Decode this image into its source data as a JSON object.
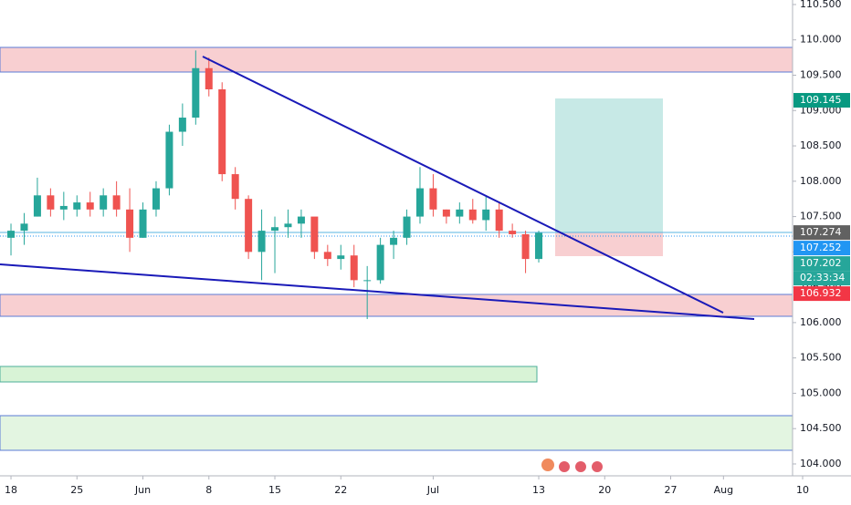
{
  "chart_data": {
    "type": "candlestick",
    "categories": [
      "18",
      null,
      null,
      null,
      null,
      "25",
      null,
      null,
      null,
      null,
      "Jun",
      null,
      null,
      null,
      null,
      "8",
      null,
      null,
      null,
      null,
      "15",
      null,
      null,
      null,
      null,
      "22",
      null,
      null,
      null,
      null,
      null,
      null,
      "Jul",
      null,
      null,
      null,
      null,
      null,
      null,
      null,
      "13",
      null,
      null,
      null,
      null,
      "20",
      null,
      null,
      null,
      null,
      "27",
      null,
      null,
      null,
      "Aug",
      null,
      null,
      null,
      null,
      null,
      "10"
    ],
    "open": [
      107.2,
      107.3,
      107.5,
      107.8,
      107.6,
      107.6,
      107.7,
      107.6,
      107.8,
      107.6,
      107.2,
      107.6,
      107.9,
      108.7,
      108.9,
      109.6,
      109.3,
      108.1,
      107.75,
      107.0,
      107.3,
      107.35,
      107.4,
      107.5,
      107.0,
      106.9,
      106.95,
      106.6,
      106.6,
      107.1,
      107.2,
      107.5,
      107.9,
      107.6,
      107.5,
      107.6,
      107.45,
      107.6,
      107.3,
      107.25,
      106.9,
      null,
      null,
      null,
      null,
      null,
      null,
      null,
      null,
      null,
      null,
      null,
      null,
      null,
      null,
      null,
      null,
      null,
      null,
      null,
      null
    ],
    "high": [
      107.4,
      107.55,
      108.05,
      107.9,
      107.85,
      107.8,
      107.85,
      107.9,
      108.0,
      107.9,
      107.7,
      108.0,
      108.8,
      109.1,
      109.85,
      109.75,
      109.4,
      108.2,
      107.8,
      107.6,
      107.5,
      107.6,
      107.6,
      107.45,
      107.1,
      107.1,
      107.1,
      106.8,
      107.2,
      107.3,
      107.6,
      108.2,
      108.1,
      107.6,
      107.7,
      107.75,
      107.8,
      107.7,
      107.4,
      107.3,
      107.3,
      null,
      null,
      null,
      null,
      null,
      null,
      null,
      null,
      null,
      null,
      null,
      null,
      null,
      null,
      null,
      null,
      null,
      null,
      null,
      null
    ],
    "low": [
      106.95,
      107.1,
      107.5,
      107.5,
      107.45,
      107.5,
      107.5,
      107.5,
      107.5,
      107.0,
      107.2,
      107.5,
      107.8,
      108.5,
      108.8,
      109.2,
      108.0,
      107.6,
      106.9,
      106.6,
      106.7,
      107.2,
      107.2,
      106.9,
      106.8,
      106.75,
      106.5,
      106.05,
      106.55,
      106.9,
      107.1,
      107.4,
      107.5,
      107.4,
      107.4,
      107.4,
      107.3,
      107.2,
      107.2,
      106.7,
      106.85,
      null,
      null,
      null,
      null,
      null,
      null,
      null,
      null,
      null,
      null,
      null,
      null,
      null,
      null,
      null,
      null,
      null,
      null,
      null,
      null
    ],
    "close": [
      107.3,
      107.4,
      107.8,
      107.6,
      107.65,
      107.7,
      107.6,
      107.8,
      107.6,
      107.2,
      107.6,
      107.9,
      108.7,
      108.9,
      109.6,
      109.3,
      108.1,
      107.75,
      107.0,
      107.3,
      107.35,
      107.4,
      107.5,
      107.0,
      106.9,
      106.95,
      106.6,
      106.6,
      107.1,
      107.2,
      107.5,
      107.9,
      107.6,
      107.5,
      107.6,
      107.45,
      107.6,
      107.3,
      107.25,
      106.9,
      107.27,
      null,
      null,
      null,
      null,
      null,
      null,
      null,
      null,
      null,
      null,
      null,
      null,
      null,
      null,
      null,
      null,
      null,
      null,
      null,
      null
    ],
    "up_color": "#26a69a",
    "down_color": "#ef5350",
    "ylim": [
      103.832,
      110.564
    ],
    "yticks": [
      {
        "value": 104,
        "label": "104.000"
      },
      {
        "value": 104.5,
        "label": "104.500"
      },
      {
        "value": 105,
        "label": "105.000"
      },
      {
        "value": 105.5,
        "label": "105.500"
      },
      {
        "value": 106,
        "label": "106.000"
      },
      {
        "value": 106.5,
        "label": "106.500"
      },
      {
        "value": 107,
        "label": "107.000"
      },
      {
        "value": 107.5,
        "label": "107.500"
      },
      {
        "value": 108,
        "label": "108.000"
      },
      {
        "value": 108.5,
        "label": "108.500"
      },
      {
        "value": 109,
        "label": "109.000"
      },
      {
        "value": 109.5,
        "label": "109.500"
      },
      {
        "value": 110,
        "label": "110.000"
      },
      {
        "value": 110.5,
        "label": "110.500"
      }
    ],
    "price_labels": [
      {
        "value": 109.145,
        "label": "109.145",
        "color": "#089981"
      },
      {
        "value": 107.274,
        "label": "107.274",
        "color": "#616161"
      },
      {
        "value": 107.252,
        "label": "107.252",
        "color": "#2196f3"
      },
      {
        "value": 107.202,
        "label": "107.202",
        "color": "#26a69a"
      },
      {
        "value": 106.932,
        "label": "106.932",
        "color": "#f23645"
      }
    ],
    "countdown": "02:33:34"
  }
}
